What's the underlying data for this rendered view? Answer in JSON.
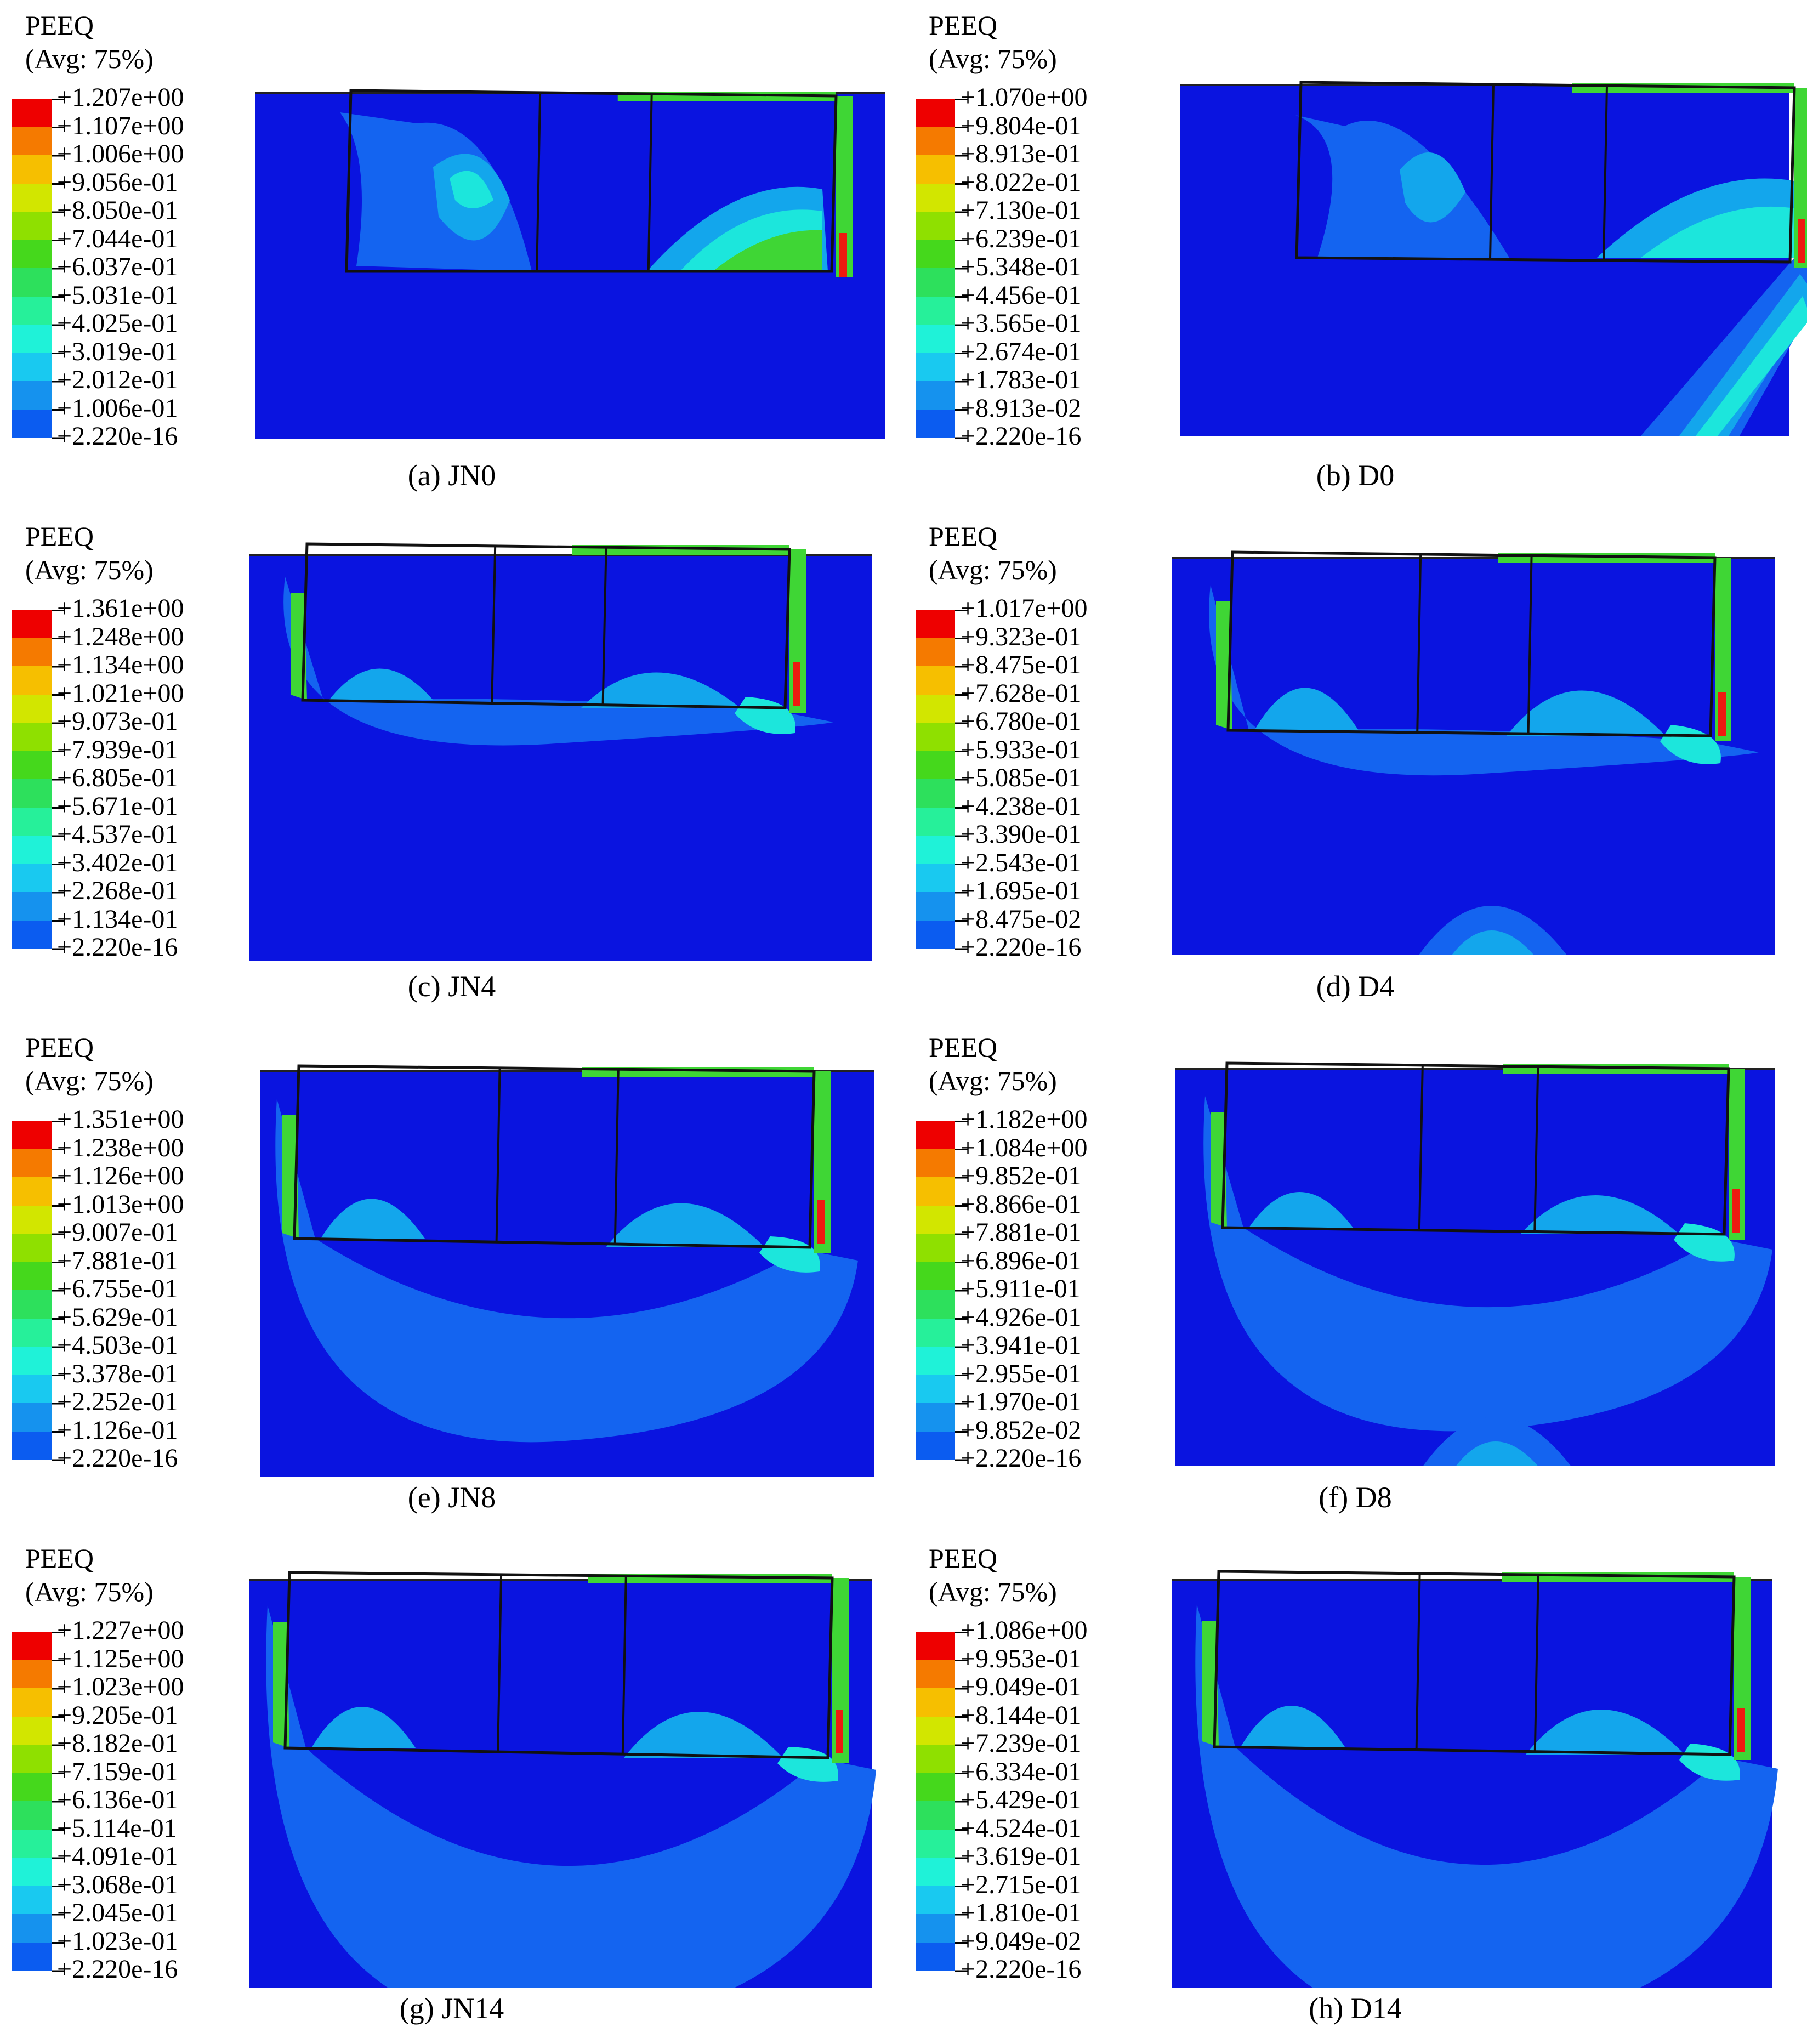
{
  "legend_colors": [
    "#0000ff",
    "#0b5cf0",
    "#1592ee",
    "#19c9f0",
    "#1ff2d8",
    "#26f09a",
    "#2de05c",
    "#45d81c",
    "#8fe000",
    "#d2e600",
    "#f6bf00",
    "#f57a00",
    "#ee0000"
  ],
  "field_colors": {
    "background": "#0a14e0",
    "low": "#1464f0",
    "mid": "#13a6ec",
    "cyan": "#1ce6dc",
    "green": "#3fd635",
    "red": "#ee1a10"
  },
  "panels": [
    {
      "title": "PEEQ",
      "subtitle": "(Avg: 75%)",
      "caption": "(a) JN0",
      "values": [
        "+1.207e+00",
        "+1.107e+00",
        "+1.006e+00",
        "+9.056e-01",
        "+8.050e-01",
        "+7.044e-01",
        "+6.037e-01",
        "+5.031e-01",
        "+4.025e-01",
        "+3.019e-01",
        "+2.012e-01",
        "+1.006e-01",
        "+2.220e-16"
      ]
    },
    {
      "title": "PEEQ",
      "subtitle": "(Avg: 75%)",
      "caption": "(b) D0",
      "values": [
        "+1.070e+00",
        "+9.804e-01",
        "+8.913e-01",
        "+8.022e-01",
        "+7.130e-01",
        "+6.239e-01",
        "+5.348e-01",
        "+4.456e-01",
        "+3.565e-01",
        "+2.674e-01",
        "+1.783e-01",
        "+8.913e-02",
        "+2.220e-16"
      ]
    },
    {
      "title": "PEEQ",
      "subtitle": "(Avg: 75%)",
      "caption": "(c) JN4",
      "values": [
        "+1.361e+00",
        "+1.248e+00",
        "+1.134e+00",
        "+1.021e+00",
        "+9.073e-01",
        "+7.939e-01",
        "+6.805e-01",
        "+5.671e-01",
        "+4.537e-01",
        "+3.402e-01",
        "+2.268e-01",
        "+1.134e-01",
        "+2.220e-16"
      ]
    },
    {
      "title": "PEEQ",
      "subtitle": "(Avg: 75%)",
      "caption": "(d) D4",
      "values": [
        "+1.017e+00",
        "+9.323e-01",
        "+8.475e-01",
        "+7.628e-01",
        "+6.780e-01",
        "+5.933e-01",
        "+5.085e-01",
        "+4.238e-01",
        "+3.390e-01",
        "+2.543e-01",
        "+1.695e-01",
        "+8.475e-02",
        "+2.220e-16"
      ]
    },
    {
      "title": "PEEQ",
      "subtitle": "(Avg: 75%)",
      "caption": "(e) JN8",
      "values": [
        "+1.351e+00",
        "+1.238e+00",
        "+1.126e+00",
        "+1.013e+00",
        "+9.007e-01",
        "+7.881e-01",
        "+6.755e-01",
        "+5.629e-01",
        "+4.503e-01",
        "+3.378e-01",
        "+2.252e-01",
        "+1.126e-01",
        "+2.220e-16"
      ]
    },
    {
      "title": "PEEQ",
      "subtitle": "(Avg: 75%)",
      "caption": "(f) D8",
      "values": [
        "+1.182e+00",
        "+1.084e+00",
        "+9.852e-01",
        "+8.866e-01",
        "+7.881e-01",
        "+6.896e-01",
        "+5.911e-01",
        "+4.926e-01",
        "+3.941e-01",
        "+2.955e-01",
        "+1.970e-01",
        "+9.852e-02",
        "+2.220e-16"
      ]
    },
    {
      "title": "PEEQ",
      "subtitle": "(Avg: 75%)",
      "caption": "(g) JN14",
      "values": [
        "+1.227e+00",
        "+1.125e+00",
        "+1.023e+00",
        "+9.205e-01",
        "+8.182e-01",
        "+7.159e-01",
        "+6.136e-01",
        "+5.114e-01",
        "+4.091e-01",
        "+3.068e-01",
        "+2.045e-01",
        "+1.023e-01",
        "+2.220e-16"
      ]
    },
    {
      "title": "PEEQ",
      "subtitle": "(Avg: 75%)",
      "caption": "(h) D14",
      "values": [
        "+1.086e+00",
        "+9.953e-01",
        "+9.049e-01",
        "+8.144e-01",
        "+7.239e-01",
        "+6.334e-01",
        "+5.429e-01",
        "+4.524e-01",
        "+3.619e-01",
        "+2.715e-01",
        "+1.810e-01",
        "+9.049e-02",
        "+2.220e-16"
      ]
    }
  ]
}
